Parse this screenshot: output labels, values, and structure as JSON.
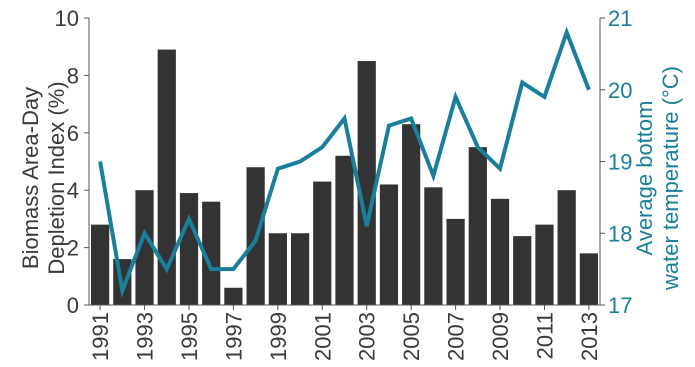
{
  "chart_data": {
    "type": "bar+line",
    "x": [
      1991,
      1992,
      1993,
      1994,
      1995,
      1996,
      1997,
      1998,
      1999,
      2000,
      2001,
      2002,
      2003,
      2004,
      2005,
      2006,
      2007,
      2008,
      2009,
      2010,
      2011,
      2012,
      2013
    ],
    "x_tick_labels": [
      "1991",
      "1993",
      "1995",
      "1997",
      "1999",
      "2001",
      "2003",
      "2005",
      "2007",
      "2009",
      "2011",
      "2013"
    ],
    "series": [
      {
        "axis": "left",
        "kind": "bar",
        "color": "#333333",
        "values": [
          2.8,
          1.6,
          4.0,
          8.9,
          3.9,
          3.6,
          0.6,
          4.8,
          2.5,
          2.5,
          4.3,
          5.2,
          8.5,
          4.2,
          6.3,
          4.1,
          3.0,
          5.5,
          3.7,
          2.4,
          2.8,
          4.0,
          1.8
        ]
      },
      {
        "axis": "right",
        "kind": "line",
        "color": "#1a7f9b",
        "values": [
          19.0,
          17.2,
          18.0,
          17.5,
          18.2,
          17.5,
          17.5,
          17.9,
          18.9,
          19.0,
          19.2,
          19.6,
          18.1,
          19.5,
          19.6,
          18.8,
          19.9,
          19.2,
          18.9,
          20.1,
          19.9,
          20.8,
          20.0
        ]
      }
    ],
    "y_left": {
      "label_line1": "Biomass Area-Day",
      "label_line2": "Depletion Index (%)",
      "range": [
        0,
        10
      ],
      "ticks": [
        "0",
        "2",
        "4",
        "6",
        "8",
        "10"
      ]
    },
    "y_right": {
      "label_line1": "Average bottom",
      "label_line2": "water temperature (°C)",
      "range": [
        17,
        21
      ],
      "ticks": [
        "17",
        "18",
        "19",
        "20",
        "21"
      ]
    },
    "grid": false
  }
}
